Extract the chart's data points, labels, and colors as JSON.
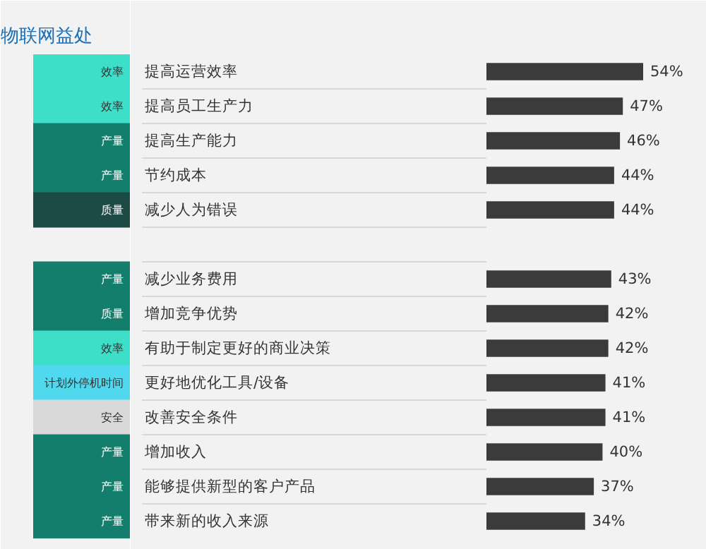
{
  "chart_data": [
    {
      "type": "other",
      "title": "物联网益处",
      "categories": [
        "效率",
        "效率",
        "产量",
        "产量",
        "质量",
        null,
        "产量",
        "质量",
        "效率",
        "计划外停机时间",
        "安全",
        "产量",
        "产量",
        "产量"
      ],
      "colors": [
        "#3ddfc9",
        "#3ddfc9",
        "#127e6b",
        "#127e6b",
        "#1e4a46",
        null,
        "#127e6b",
        "#127e6b",
        "#3ddfc9",
        "#4fd8ee",
        "#d9d9d9",
        "#127e6b",
        "#127e6b",
        "#127e6b"
      ]
    },
    {
      "type": "bar",
      "orientation": "horizontal",
      "categories": [
        "提高运营效率",
        "提高员工生产力",
        "提高生产能力",
        "节约成本",
        "减少人为错误",
        null,
        "减少业务费用",
        "增加竞争优势",
        "有助于制定更好的商业决策",
        "更好地优化工具/设备",
        "改善安全条件",
        "增加收入",
        "能够提供新型的客户产品",
        "带来新的收入来源"
      ],
      "values": [
        54,
        47,
        46,
        44,
        44,
        null,
        43,
        42,
        42,
        41,
        41,
        40,
        37,
        34
      ],
      "value_labels": [
        "54%",
        "47%",
        "46%",
        "44%",
        "44%",
        null,
        "43%",
        "42%",
        "42%",
        "41%",
        "41%",
        "40%",
        "37%",
        "34%"
      ],
      "color": "#3b3b3b"
    }
  ]
}
